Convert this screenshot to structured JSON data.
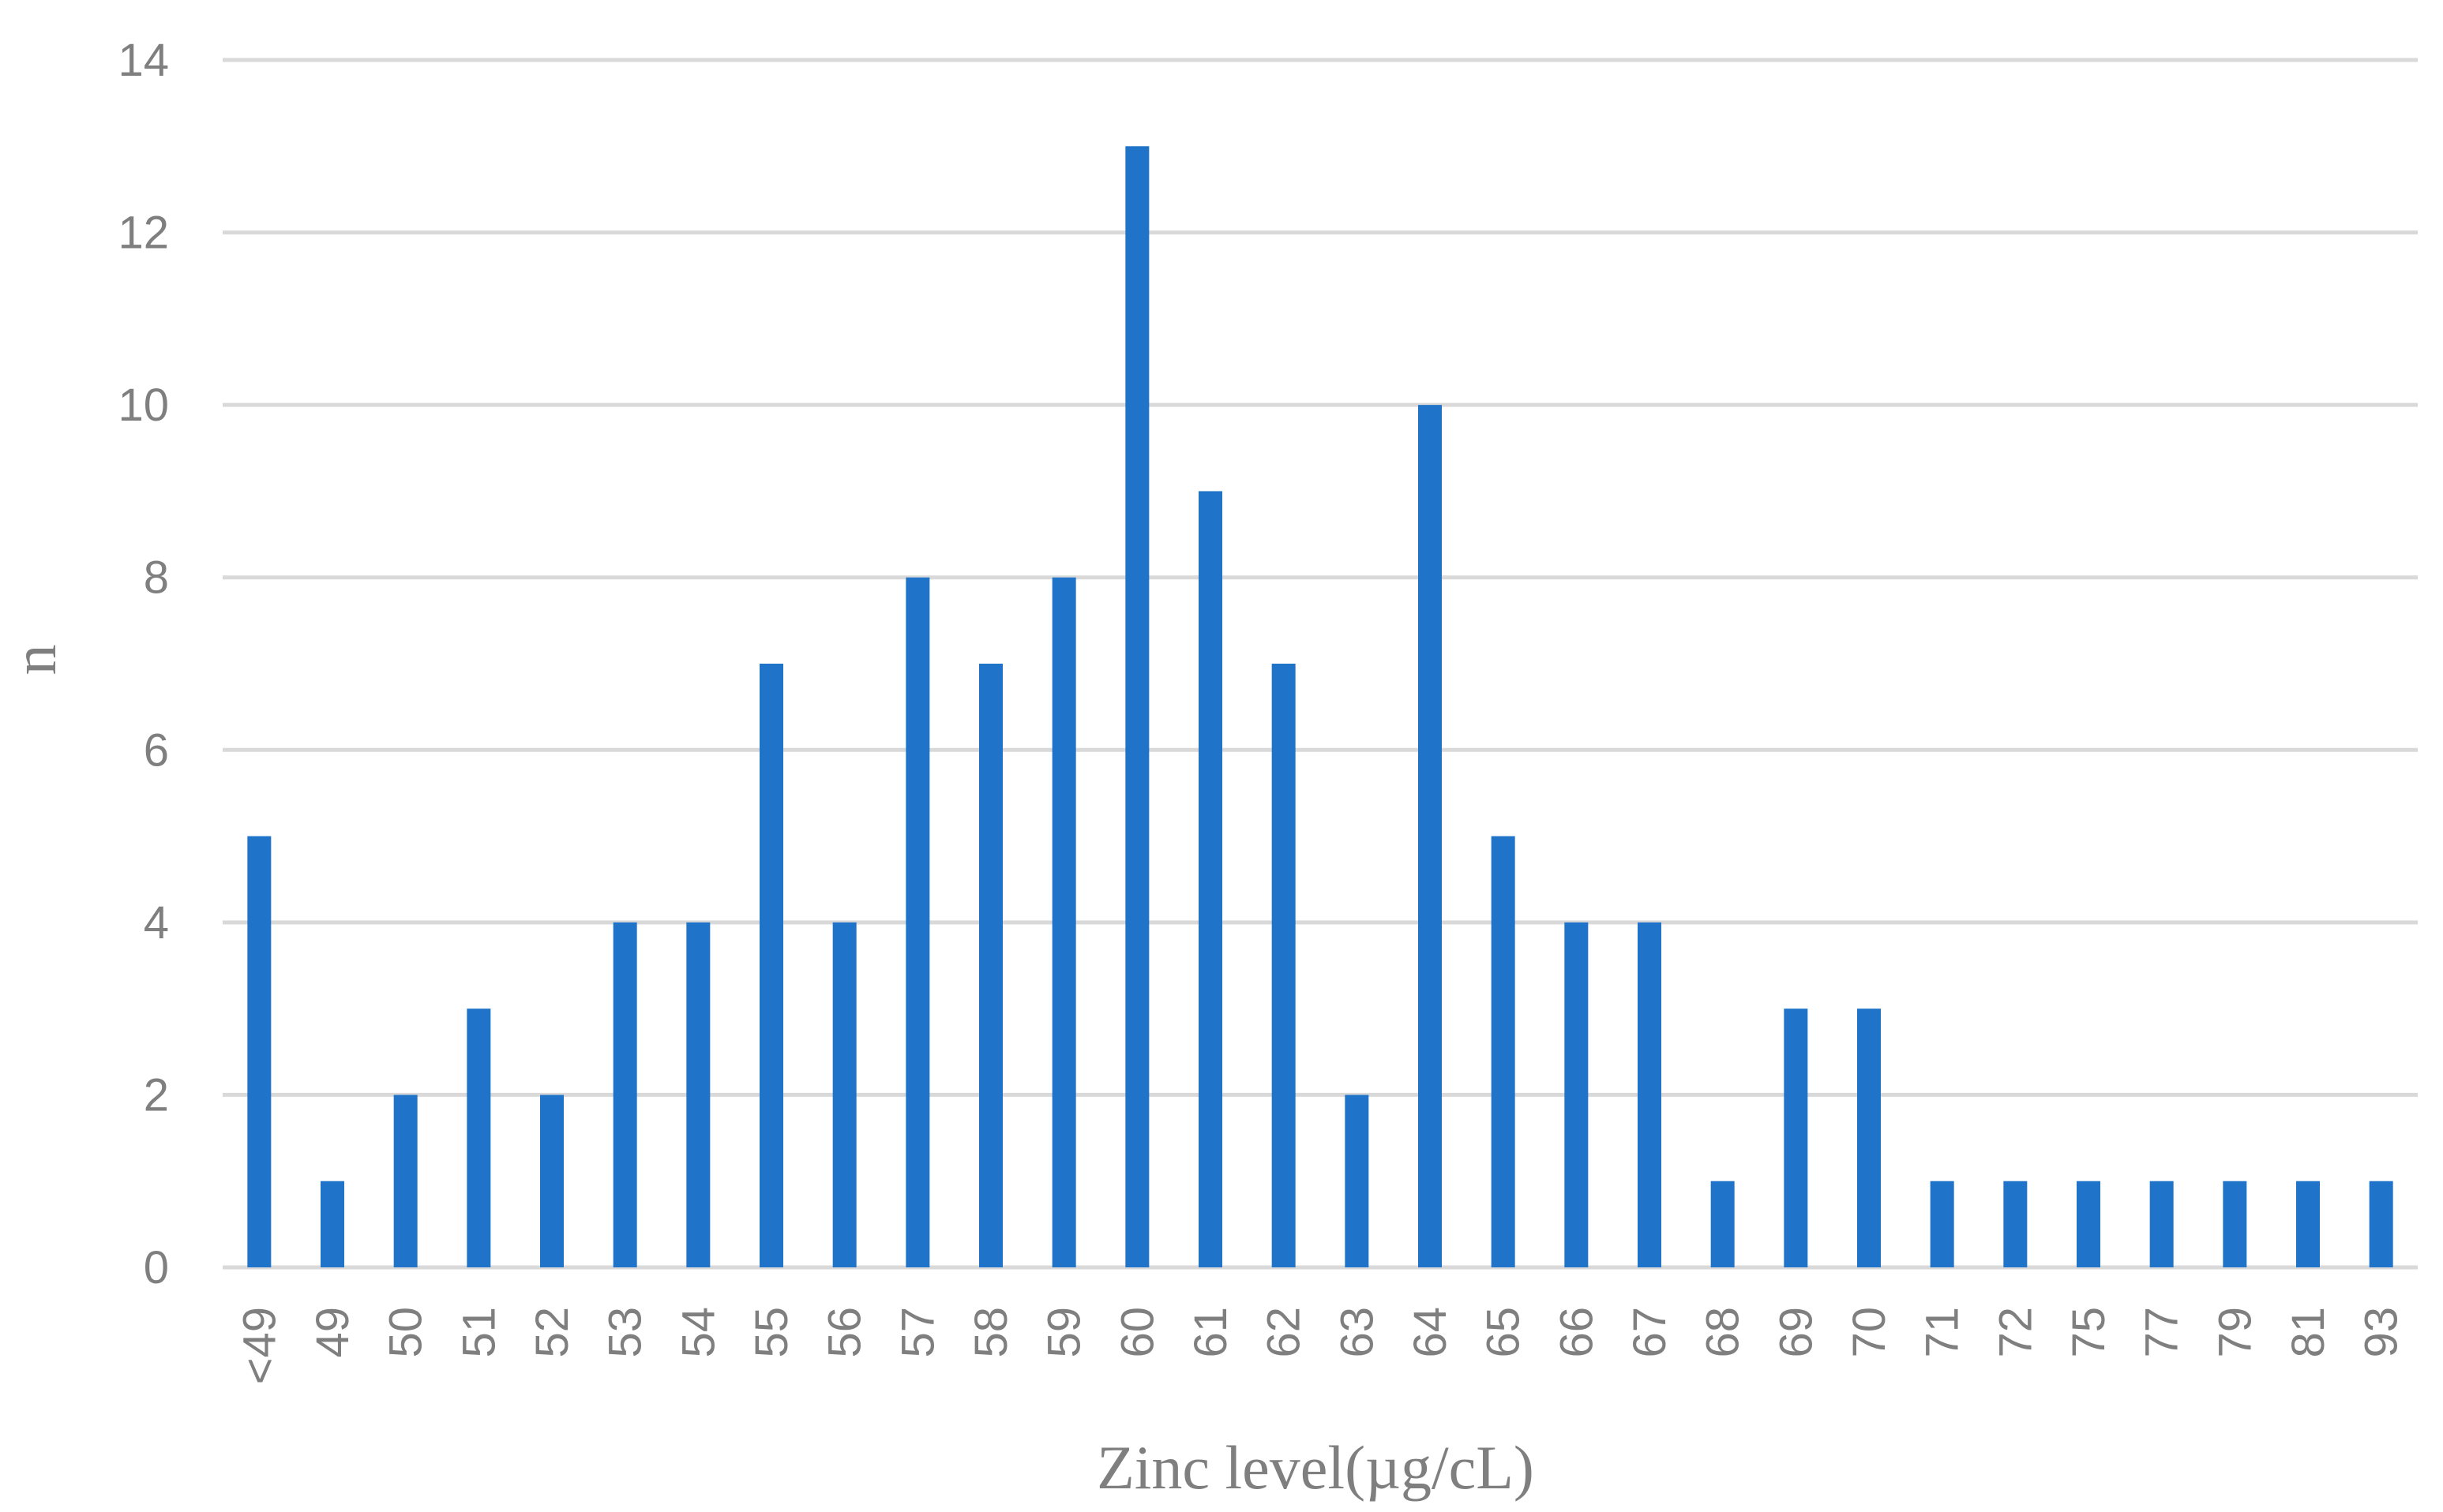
{
  "chart_data": {
    "type": "bar",
    "title": "",
    "xlabel": "Zinc level(µg/cL)",
    "ylabel": "n",
    "ylim": [
      0,
      14
    ],
    "yticks": [
      "0",
      "2",
      "4",
      "6",
      "8",
      "10",
      "12",
      "14"
    ],
    "grid": true,
    "legend": "none",
    "bar_color": "#1f74c9",
    "grid_color": "#d9d9d9",
    "text_color": "#7f7f7f",
    "categories": [
      "<49",
      "49",
      "50",
      "51",
      "52",
      "53",
      "54",
      "55",
      "56",
      "57",
      "58",
      "59",
      "60",
      "61",
      "62",
      "63",
      "64",
      "65",
      "66",
      "67",
      "68",
      "69",
      "70",
      "71",
      "72",
      "75",
      "77",
      "79",
      "81",
      "93"
    ],
    "values": [
      5,
      1,
      2,
      3,
      2,
      4,
      4,
      7,
      4,
      8,
      7,
      8,
      13,
      9,
      7,
      2,
      10,
      5,
      4,
      4,
      1,
      3,
      3,
      1,
      1,
      1,
      1,
      1,
      1,
      1
    ]
  }
}
